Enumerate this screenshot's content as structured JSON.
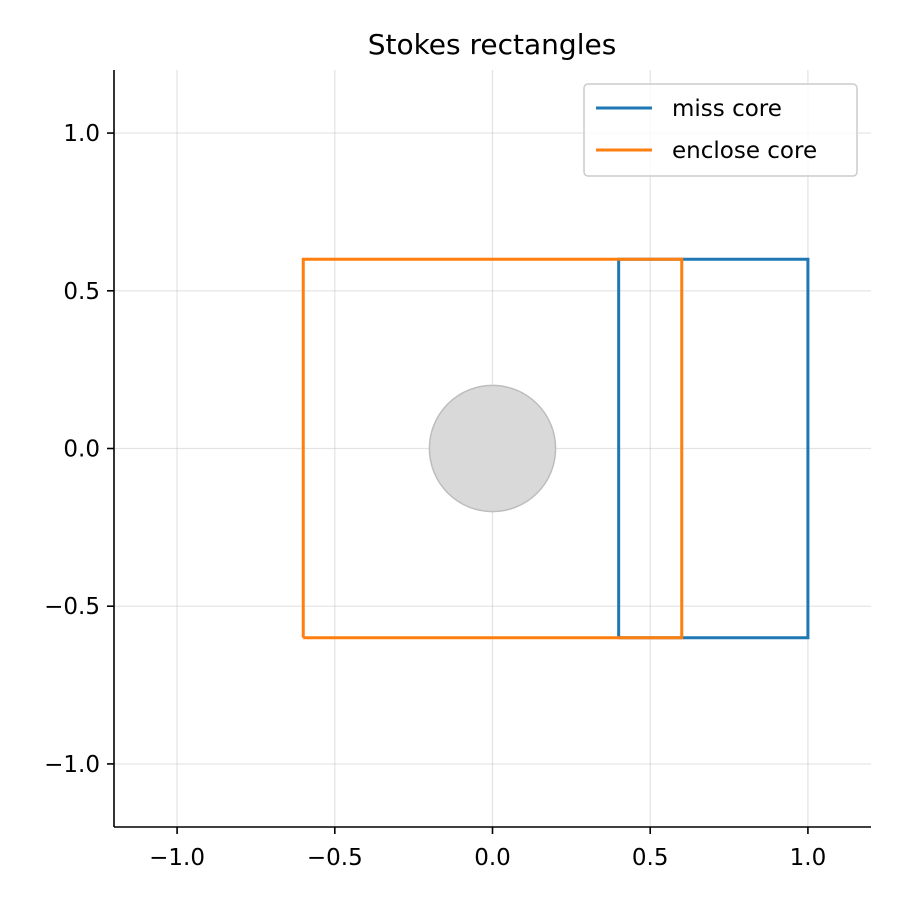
{
  "chart_data": {
    "type": "line",
    "title": "Stokes rectangles",
    "xlabel": "",
    "ylabel": "",
    "xlim": [
      -1.2,
      1.2
    ],
    "ylim": [
      -1.2,
      1.2
    ],
    "xticks": [
      -1.0,
      -0.5,
      0.0,
      0.5,
      1.0
    ],
    "yticks": [
      -1.0,
      -0.5,
      0.0,
      0.5,
      1.0
    ],
    "xtick_labels": [
      "−1.0",
      "−0.5",
      "0.0",
      "0.5",
      "1.0"
    ],
    "ytick_labels": [
      "−1.0",
      "−0.5",
      "0.0",
      "0.5",
      "1.0"
    ],
    "grid": true,
    "legend_position": "upper-right",
    "core": {
      "center": [
        0.0,
        0.0
      ],
      "radius": 0.2,
      "color": "#d9d9d9"
    },
    "series": [
      {
        "name": "miss core",
        "color": "#1f77b4",
        "x": [
          0.4,
          1.0,
          1.0,
          0.4,
          0.4
        ],
        "y": [
          -0.6,
          -0.6,
          0.6,
          0.6,
          -0.6
        ]
      },
      {
        "name": "enclose core",
        "color": "#ff7f0e",
        "x": [
          -0.6,
          0.6,
          0.6,
          -0.6,
          -0.6
        ],
        "y": [
          -0.6,
          -0.6,
          0.6,
          0.6,
          -0.6
        ]
      }
    ]
  }
}
